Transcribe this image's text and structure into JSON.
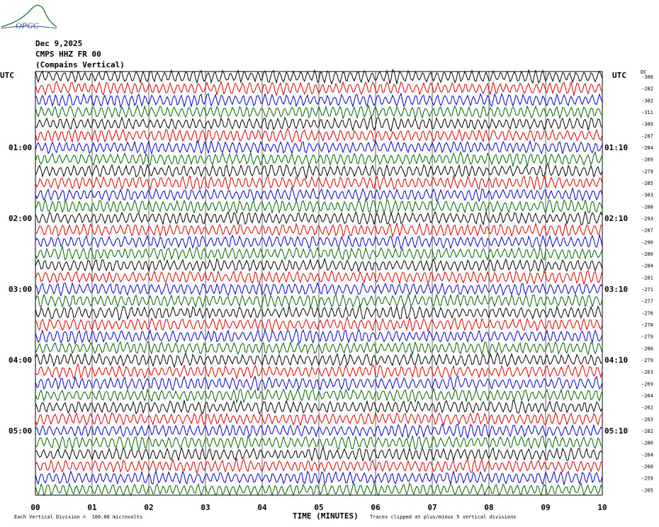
{
  "header": {
    "logo": "OPGC",
    "date": "Dec 9,2025",
    "station": "CMPS HHZ FR 00",
    "component": "(Compains Vertical)"
  },
  "left_labels": [
    "UTC",
    "01:00",
    "02:00",
    "03:00",
    "04:00",
    "05:00"
  ],
  "right_labels": [
    "UTC",
    "01:10",
    "02:10",
    "03:10",
    "04:10",
    "05:10"
  ],
  "dc_label": "DC",
  "dc_offsets": [
    -306,
    -282,
    -302,
    -311,
    -309,
    -287,
    -284,
    -289,
    -279,
    -285,
    -303,
    -288,
    -293,
    -287,
    -290,
    -280,
    -284,
    -281,
    -271,
    -277,
    -276,
    -278,
    -279,
    -280,
    -279,
    -263,
    -269,
    -264,
    -262,
    -263,
    -282,
    -280,
    -264,
    -260,
    -259,
    -265
  ],
  "x_labels": [
    "00",
    "01",
    "02",
    "03",
    "04",
    "05",
    "06",
    "07",
    "08",
    "09",
    "10"
  ],
  "footer": {
    "scale": "Each Vertical Division =  100.00 microvolts",
    "axis_title": "TIME (MINUTES)",
    "clip_note": "Traces clipped at plus/minus 5 vertical divisions"
  }
}
